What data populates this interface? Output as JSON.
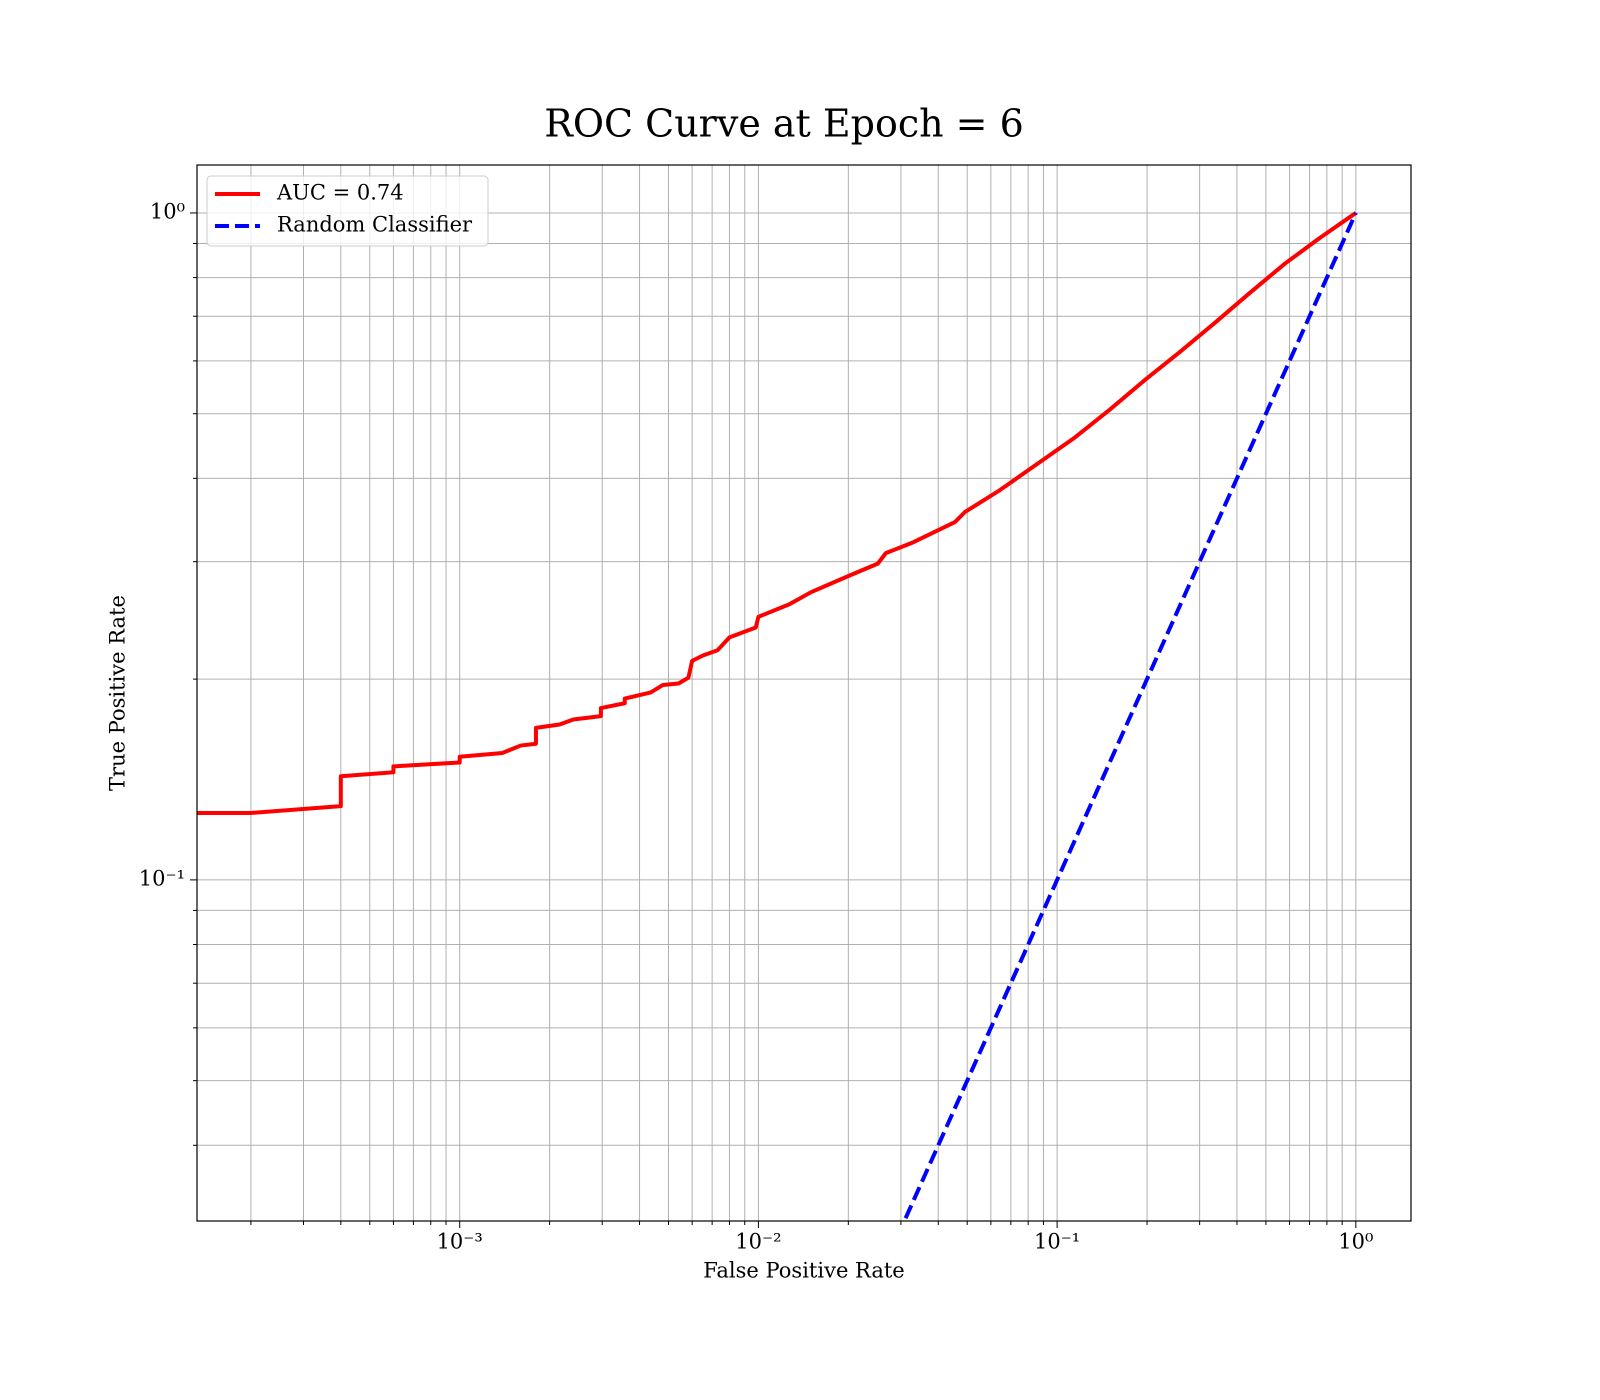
{
  "chart_data": {
    "type": "line",
    "title": "ROC Curve at Epoch = 6",
    "xlabel": "False Positive Rate",
    "ylabel": "True Positive Rate",
    "xscale": "log",
    "yscale": "log",
    "grid": true,
    "legend": "upper left",
    "xlim": [
      0.000132,
      1.53
    ],
    "ylim": [
      0.0308,
      1.18
    ],
    "xticks": [
      {
        "value": 0.001,
        "label": "10⁻³"
      },
      {
        "value": 0.01,
        "label": "10⁻²"
      },
      {
        "value": 0.1,
        "label": "10⁻¹"
      },
      {
        "value": 1,
        "label": "10⁰"
      }
    ],
    "yticks": [
      {
        "value": 0.1,
        "label": "10⁻¹"
      },
      {
        "value": 1,
        "label": "10⁰"
      }
    ],
    "xminor": [
      0.0002,
      0.0003,
      0.0004,
      0.0005,
      0.0006,
      0.0007,
      0.0008,
      0.0009,
      0.002,
      0.003,
      0.004,
      0.005,
      0.006,
      0.007,
      0.008,
      0.009,
      0.02,
      0.03,
      0.04,
      0.05,
      0.06,
      0.07,
      0.08,
      0.09,
      0.2,
      0.3,
      0.4,
      0.5,
      0.6,
      0.7,
      0.8,
      0.9
    ],
    "yminor": [
      0.04,
      0.05,
      0.06,
      0.07,
      0.08,
      0.09,
      0.2,
      0.3,
      0.4,
      0.5,
      0.6,
      0.7,
      0.8,
      0.9
    ],
    "series": [
      {
        "name": "AUC = 0.74",
        "color": "#ff0000",
        "linestyle": "solid",
        "x": [
          0.000132,
          0.0002,
          0.0004,
          0.0004,
          0.0006,
          0.0006,
          0.001,
          0.001,
          0.00139,
          0.0016,
          0.0018,
          0.0018,
          0.00216,
          0.0024,
          0.00297,
          0.00297,
          0.00357,
          0.00357,
          0.00436,
          0.00479,
          0.0054,
          0.00583,
          0.006,
          0.00652,
          0.0073,
          0.008,
          0.0098,
          0.01,
          0.0127,
          0.015,
          0.0202,
          0.0251,
          0.0267,
          0.0331,
          0.0455,
          0.0491,
          0.0643,
          0.0875,
          0.115,
          0.15,
          0.197,
          0.258,
          0.337,
          0.442,
          0.578,
          0.757,
          1
        ],
        "values": [
          0.126,
          0.126,
          0.129,
          0.143,
          0.145,
          0.148,
          0.15,
          0.153,
          0.155,
          0.159,
          0.16,
          0.169,
          0.171,
          0.174,
          0.176,
          0.181,
          0.184,
          0.187,
          0.191,
          0.196,
          0.197,
          0.201,
          0.213,
          0.217,
          0.221,
          0.231,
          0.239,
          0.248,
          0.259,
          0.27,
          0.286,
          0.298,
          0.309,
          0.321,
          0.344,
          0.356,
          0.384,
          0.423,
          0.461,
          0.507,
          0.562,
          0.619,
          0.684,
          0.759,
          0.839,
          0.917,
          1
        ]
      },
      {
        "name": "Random Classifier",
        "color": "#0000ff",
        "linestyle": "dashed",
        "x": [
          0.0311,
          1
        ],
        "values": [
          0.0311,
          1
        ]
      }
    ]
  }
}
